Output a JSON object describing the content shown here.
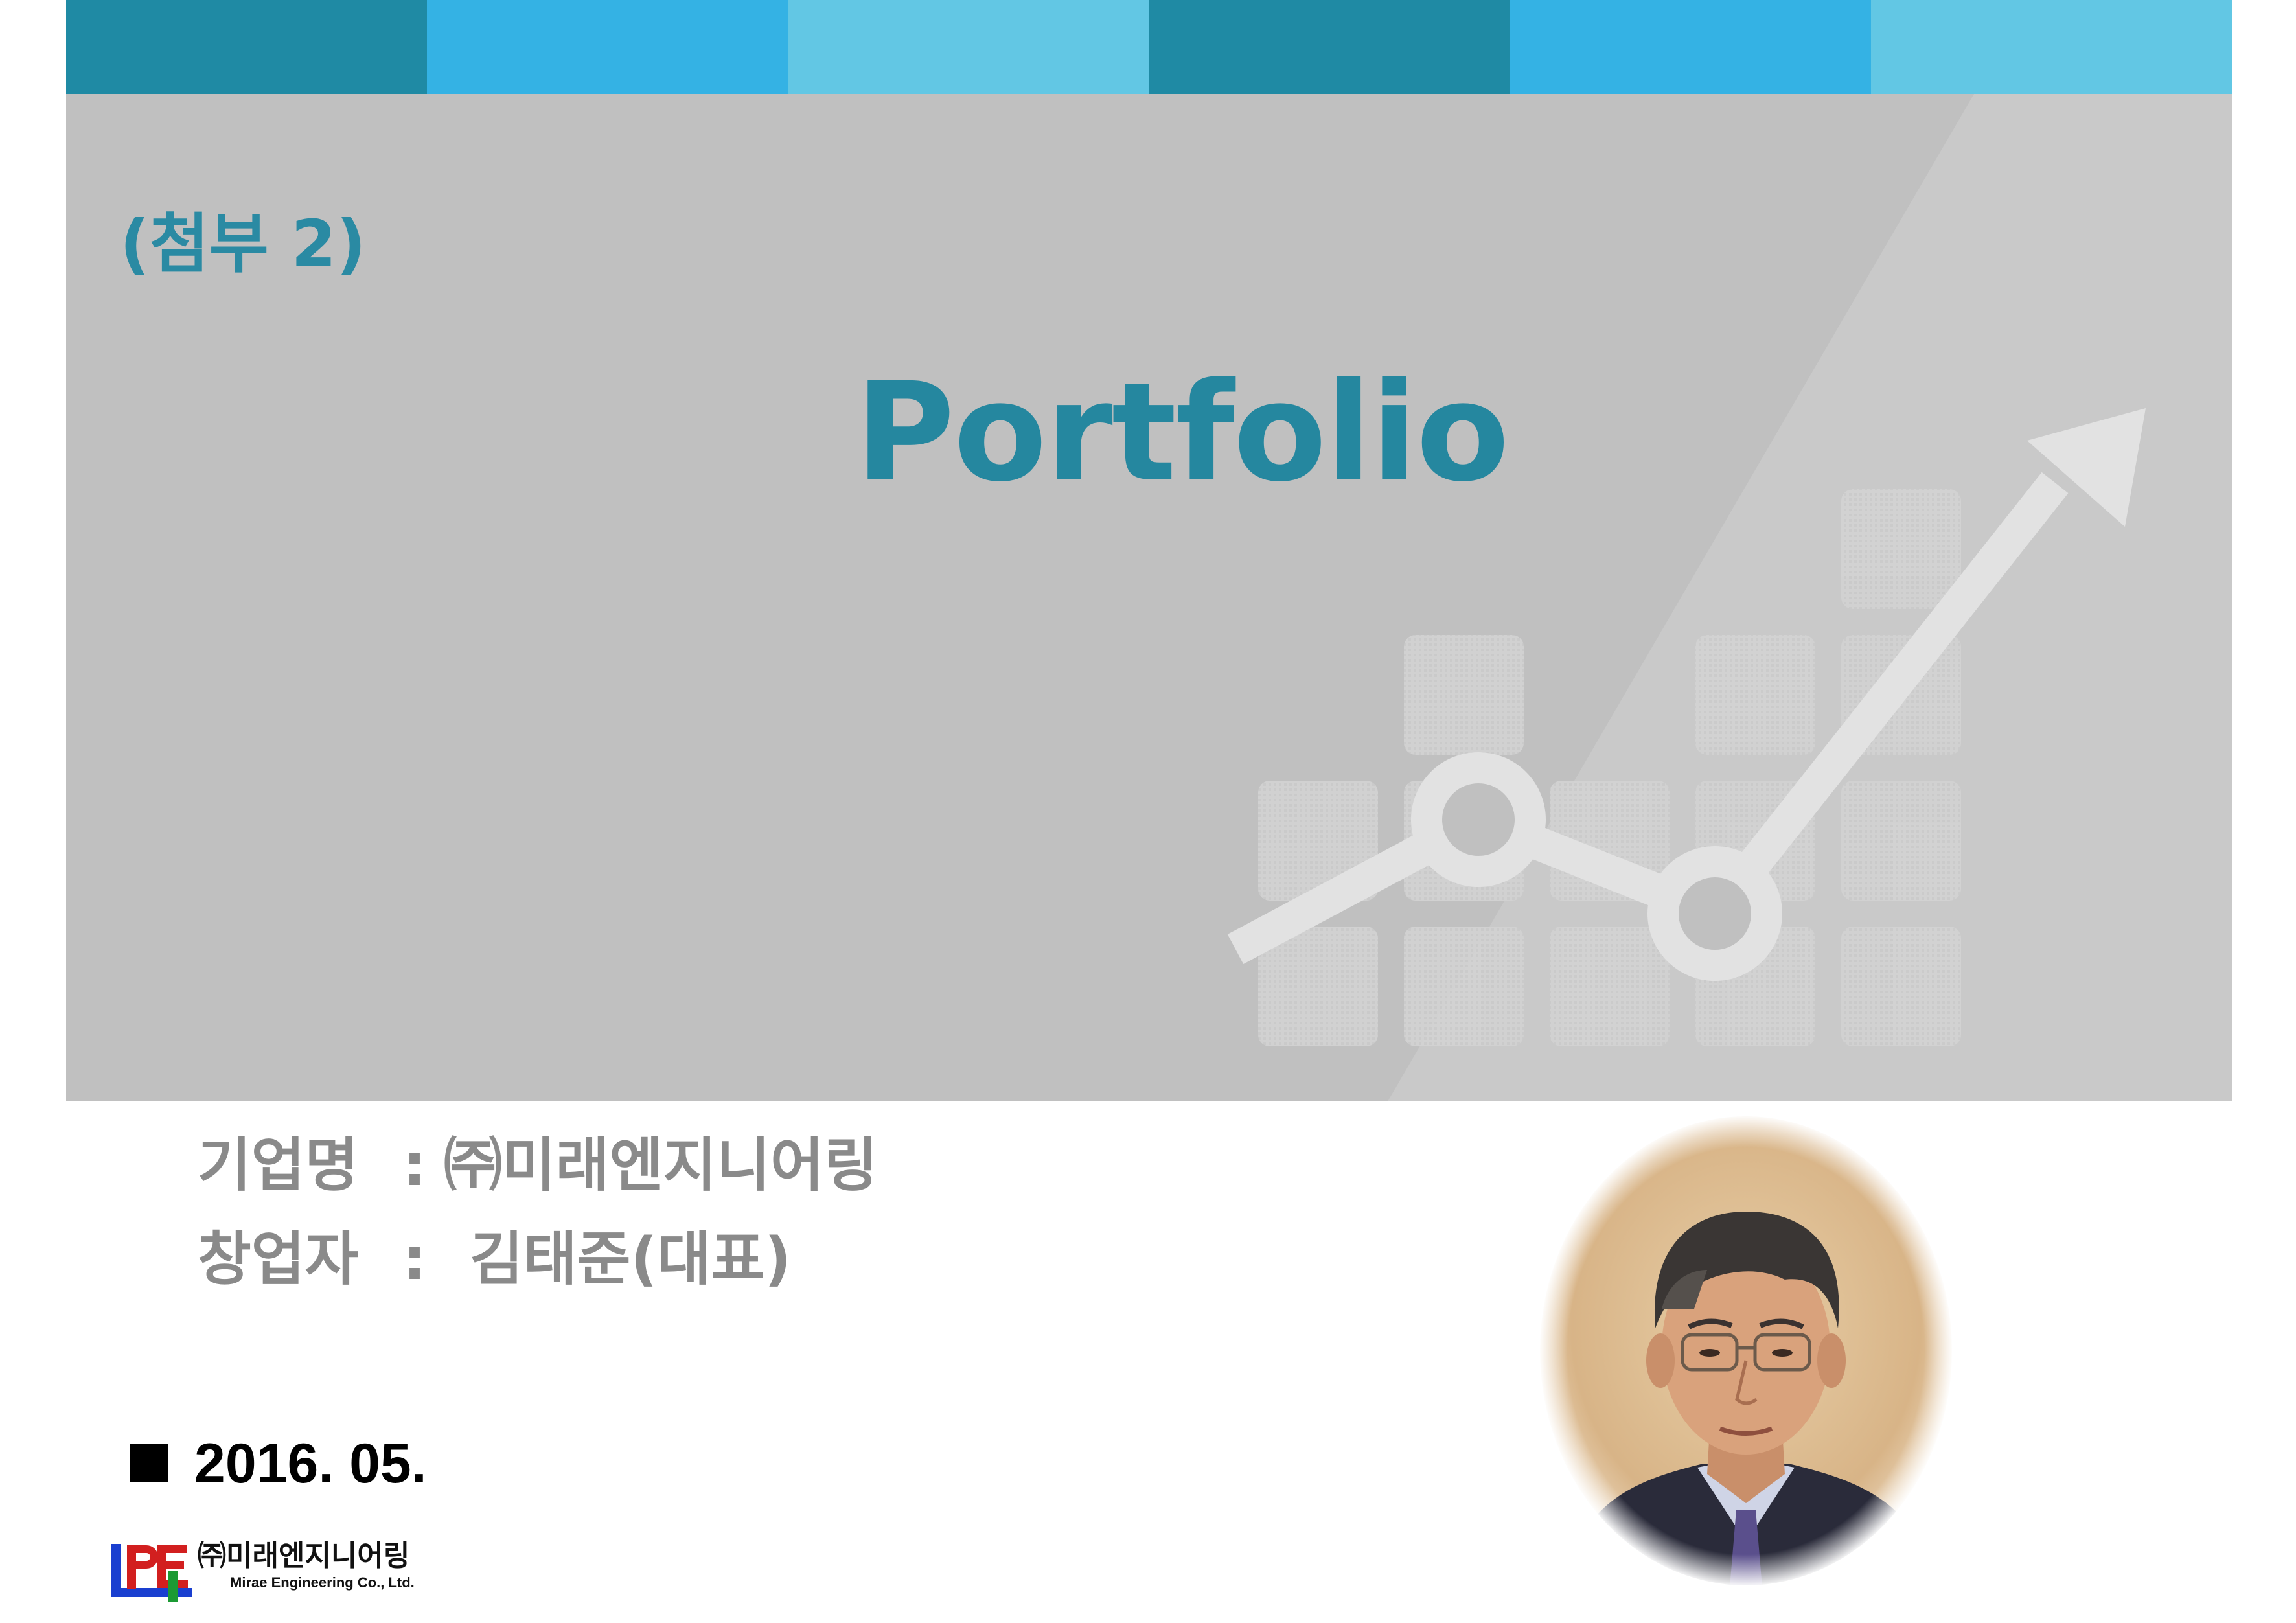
{
  "stripes": [
    "#1f8aa4",
    "#34b2e4",
    "#62c7e4",
    "#1f8aa4",
    "#34b2e4",
    "#62c7e4"
  ],
  "banner": {
    "background": "#c0c0c0",
    "attachment_label": "(첨부 2)",
    "title": "Portfolio",
    "decoration": "growth-chart-arrow"
  },
  "info": {
    "company_label": "기업명",
    "company_sep": ":",
    "company_value": "㈜미래엔지니어링",
    "founder_label": "창업자",
    "founder_sep": ":",
    "founder_value": "김태준(대표)"
  },
  "date": {
    "bullet": "■",
    "text": "2016. 05."
  },
  "logo": {
    "mark": "MPE",
    "korean_name": "㈜미래엔지니어링",
    "english_name": "Mirae Engineering Co., Ltd."
  },
  "portrait": {
    "subject": "representative-photo"
  }
}
